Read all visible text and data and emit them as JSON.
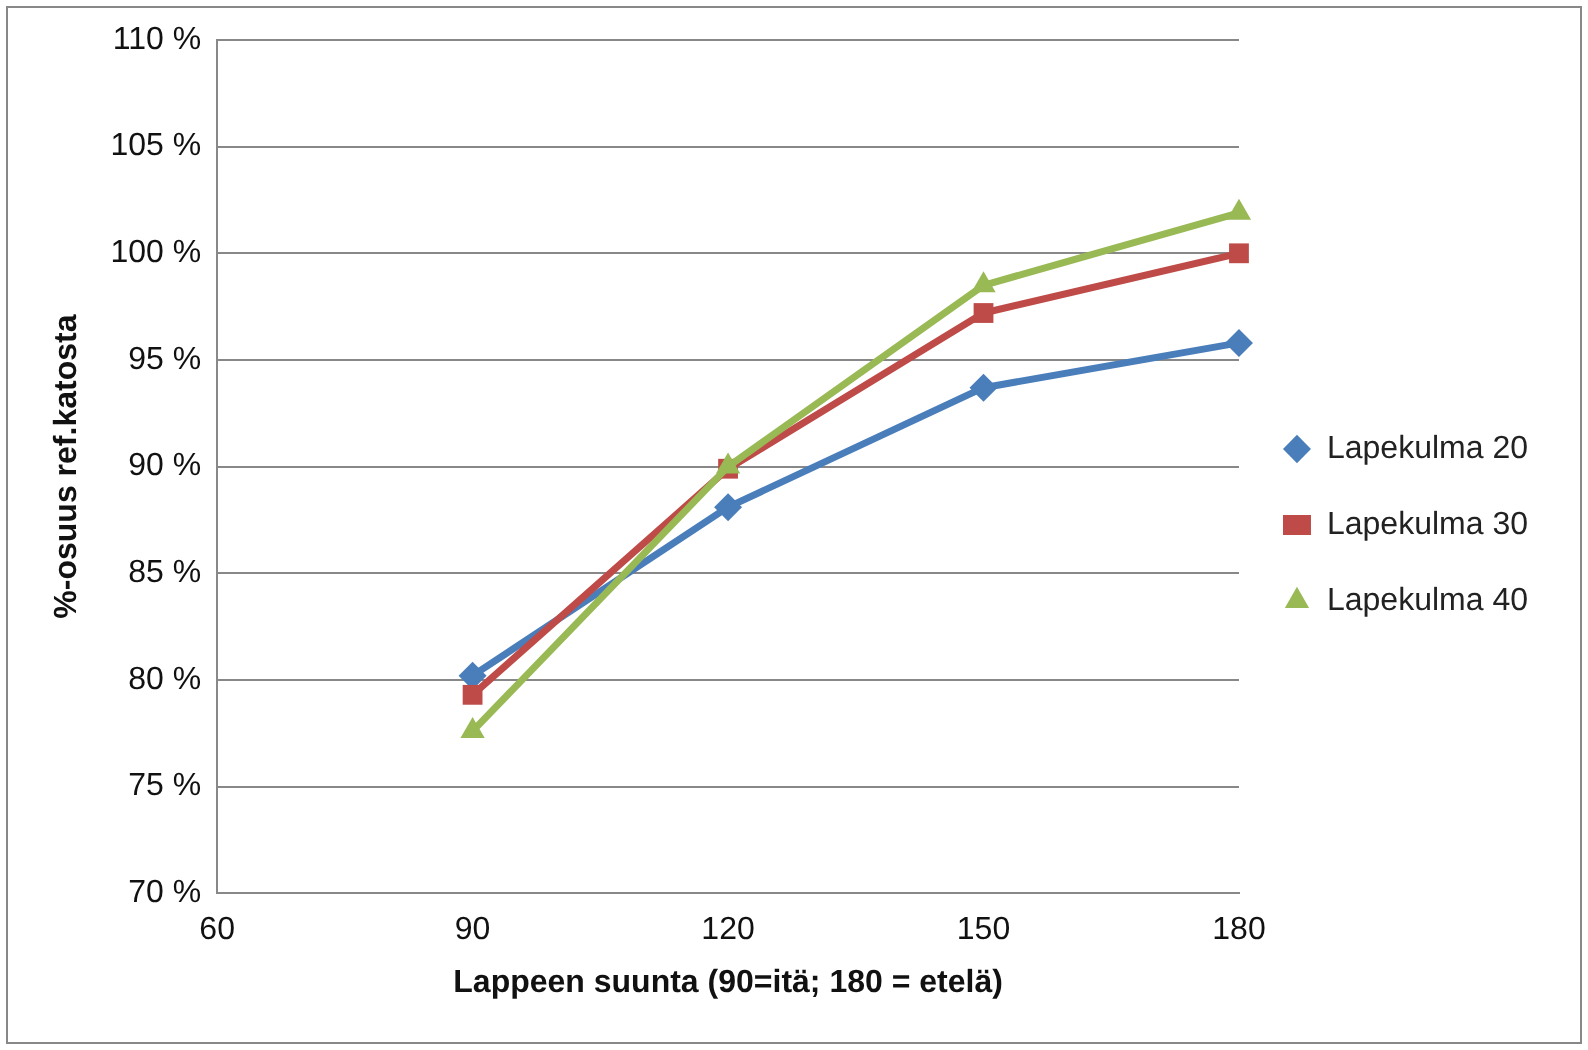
{
  "chart_data": {
    "type": "line",
    "xlabel": "Lappeen suunta (90=itä; 180 = etelä)",
    "ylabel": "%-osuus ref.katosta",
    "x": [
      90,
      120,
      150,
      180
    ],
    "xlim": [
      60,
      180
    ],
    "xticks": [
      60,
      90,
      120,
      150,
      180
    ],
    "ylim": [
      70,
      110
    ],
    "yticks": [
      {
        "value": 70,
        "label": "70 %"
      },
      {
        "value": 75,
        "label": "75 %"
      },
      {
        "value": 80,
        "label": "80 %"
      },
      {
        "value": 85,
        "label": "85 %"
      },
      {
        "value": 90,
        "label": "90 %"
      },
      {
        "value": 95,
        "label": "95 %"
      },
      {
        "value": 100,
        "label": "100 %"
      },
      {
        "value": 105,
        "label": "105 %"
      },
      {
        "value": 110,
        "label": "110 %"
      }
    ],
    "grid": "y",
    "legend": "right",
    "line_style": "solid",
    "series": [
      {
        "name": "Lapekulma 20",
        "color": "#4a7ebb",
        "marker": "diamond",
        "values": [
          80.2,
          88.1,
          93.7,
          95.8
        ]
      },
      {
        "name": "Lapekulma 30",
        "color": "#be4b48",
        "marker": "square",
        "values": [
          79.3,
          89.9,
          97.2,
          100.0
        ]
      },
      {
        "name": "Lapekulma 40",
        "color": "#98b954",
        "marker": "triangle",
        "values": [
          77.6,
          90.0,
          98.5,
          101.9
        ]
      }
    ]
  }
}
